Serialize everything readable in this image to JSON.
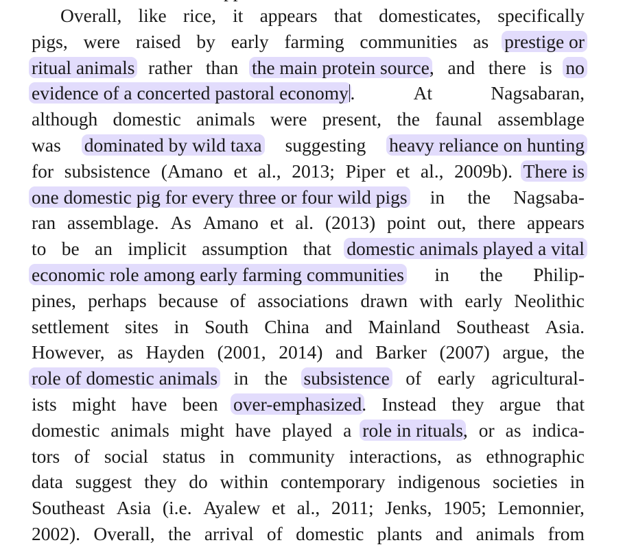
{
  "clipped_top_fragment": "pp",
  "paragraph": {
    "lines": [
      [
        [
          "Overall,",
          0
        ],
        [
          "like",
          0
        ],
        [
          "rice,",
          0
        ],
        [
          "it",
          0
        ],
        [
          "appears",
          0
        ],
        [
          "that",
          0
        ],
        [
          "domesticates,",
          0
        ],
        [
          "specifically",
          0
        ]
      ],
      [
        [
          "pigs,",
          0
        ],
        [
          "were",
          0
        ],
        [
          "raised",
          0
        ],
        [
          "by",
          0
        ],
        [
          "early",
          0
        ],
        [
          "farming",
          0
        ],
        [
          "communities",
          0
        ],
        [
          "as",
          0
        ],
        [
          "prestige or",
          1
        ]
      ],
      [
        [
          "ritual animals",
          1
        ],
        [
          "rather",
          0
        ],
        [
          "than",
          0
        ],
        [
          "the main protein source",
          1
        ],
        [
          ",",
          0
        ],
        [
          "and",
          0
        ],
        [
          "there",
          0
        ],
        [
          "is",
          0
        ],
        [
          "no",
          1
        ]
      ],
      [
        [
          "evidence of a concerted pastoral economy",
          1
        ],
        [
          ".",
          0
        ],
        [
          "At",
          0
        ],
        [
          "Nagsabaran,",
          0
        ]
      ],
      [
        [
          "although",
          0
        ],
        [
          "domestic",
          0
        ],
        [
          "animals",
          0
        ],
        [
          "were",
          0
        ],
        [
          "present,",
          0
        ],
        [
          "the",
          0
        ],
        [
          "faunal",
          0
        ],
        [
          "assemblage",
          0
        ]
      ],
      [
        [
          "was",
          0
        ],
        [
          "dominated by wild taxa",
          1
        ],
        [
          "suggesting",
          0
        ],
        [
          "heavy reliance on hunting",
          1
        ]
      ],
      [
        [
          "for",
          0
        ],
        [
          "subsistence",
          0
        ],
        [
          "(Amano",
          0
        ],
        [
          "et",
          0
        ],
        [
          "al.,",
          0
        ],
        [
          "2013;",
          0
        ],
        [
          "Piper",
          0
        ],
        [
          "et",
          0
        ],
        [
          "al.,",
          0
        ],
        [
          "2009b).",
          0
        ],
        [
          "There is",
          1
        ]
      ],
      [
        [
          "one domestic pig for every three or four wild pigs",
          1
        ],
        [
          "in",
          0
        ],
        [
          "the",
          0
        ],
        [
          "Nagsaba-",
          0
        ]
      ],
      [
        [
          "ran",
          0
        ],
        [
          "assemblage.",
          0
        ],
        [
          "As",
          0
        ],
        [
          "Amano",
          0
        ],
        [
          "et",
          0
        ],
        [
          "al.",
          0
        ],
        [
          "(2013)",
          0
        ],
        [
          "point",
          0
        ],
        [
          "out,",
          0
        ],
        [
          "there",
          0
        ],
        [
          "appears",
          0
        ]
      ],
      [
        [
          "to",
          0
        ],
        [
          "be",
          0
        ],
        [
          "an",
          0
        ],
        [
          "implicit",
          0
        ],
        [
          "assumption",
          0
        ],
        [
          "that",
          0
        ],
        [
          "domestic animals played a vital",
          1
        ]
      ],
      [
        [
          "economic role among early farming communities",
          1
        ],
        [
          "in",
          0
        ],
        [
          "the",
          0
        ],
        [
          "Philip-",
          0
        ]
      ],
      [
        [
          "pines,",
          0
        ],
        [
          "perhaps",
          0
        ],
        [
          "because",
          0
        ],
        [
          "of",
          0
        ],
        [
          "associations",
          0
        ],
        [
          "drawn",
          0
        ],
        [
          "with",
          0
        ],
        [
          "early",
          0
        ],
        [
          "Neolithic",
          0
        ]
      ],
      [
        [
          "settlement",
          0
        ],
        [
          "sites",
          0
        ],
        [
          "in",
          0
        ],
        [
          "South",
          0
        ],
        [
          "China",
          0
        ],
        [
          "and",
          0
        ],
        [
          "Mainland",
          0
        ],
        [
          "Southeast",
          0
        ],
        [
          "Asia.",
          0
        ]
      ],
      [
        [
          "However,",
          0
        ],
        [
          "as",
          0
        ],
        [
          "Hayden",
          0
        ],
        [
          "(2001,",
          0
        ],
        [
          "2014)",
          0
        ],
        [
          "and",
          0
        ],
        [
          "Barker",
          0
        ],
        [
          "(2007)",
          0
        ],
        [
          "argue,",
          0
        ],
        [
          "the",
          0
        ]
      ],
      [
        [
          "role of domestic animals",
          1
        ],
        [
          "in",
          0
        ],
        [
          "the",
          0
        ],
        [
          "subsistence",
          1
        ],
        [
          "of",
          0
        ],
        [
          "early",
          0
        ],
        [
          "agricultural-",
          0
        ]
      ],
      [
        [
          "ists",
          0
        ],
        [
          "might",
          0
        ],
        [
          "have",
          0
        ],
        [
          "been",
          0
        ],
        [
          "over-emphasized",
          1
        ],
        [
          ".",
          0
        ],
        [
          "Instead",
          0
        ],
        [
          "they",
          0
        ],
        [
          "argue",
          0
        ],
        [
          "that",
          0
        ]
      ],
      [
        [
          "domestic",
          0
        ],
        [
          "animals",
          0
        ],
        [
          "might",
          0
        ],
        [
          "have",
          0
        ],
        [
          "played",
          0
        ],
        [
          "a",
          0
        ],
        [
          "role in rituals",
          1
        ],
        [
          ",",
          0
        ],
        [
          "or",
          0
        ],
        [
          "as",
          0
        ],
        [
          "indica-",
          0
        ]
      ],
      [
        [
          "tors",
          0
        ],
        [
          "of",
          0
        ],
        [
          "social",
          0
        ],
        [
          "status",
          0
        ],
        [
          "in",
          0
        ],
        [
          "community",
          0
        ],
        [
          "interactions,",
          0
        ],
        [
          "as",
          0
        ],
        [
          "ethnographic",
          0
        ]
      ],
      [
        [
          "data",
          0
        ],
        [
          "suggest",
          0
        ],
        [
          "they",
          0
        ],
        [
          "do",
          0
        ],
        [
          "within",
          0
        ],
        [
          "contemporary",
          0
        ],
        [
          "indigenous",
          0
        ],
        [
          "societies",
          0
        ],
        [
          "in",
          0
        ]
      ],
      [
        [
          "Southeast",
          0
        ],
        [
          "Asia",
          0
        ],
        [
          "(i.e.",
          0
        ],
        [
          "Ayalew",
          0
        ],
        [
          "et",
          0
        ],
        [
          "al.,",
          0
        ],
        [
          "2011;",
          0
        ],
        [
          "Jenks,",
          0
        ],
        [
          "1905;",
          0
        ],
        [
          "Lemonnier,",
          0
        ]
      ],
      [
        [
          "2002).",
          0
        ],
        [
          "Overall,",
          0
        ],
        [
          "the",
          0
        ],
        [
          "arrival",
          0
        ],
        [
          "of",
          0
        ],
        [
          "domestic",
          0
        ],
        [
          "plants",
          0
        ],
        [
          "and",
          0
        ],
        [
          "animals",
          0
        ],
        [
          "from",
          0
        ]
      ]
    ]
  },
  "colors": {
    "highlight": "#e2dcfc",
    "text": "#1a1a1a",
    "background": "#ffffff"
  }
}
